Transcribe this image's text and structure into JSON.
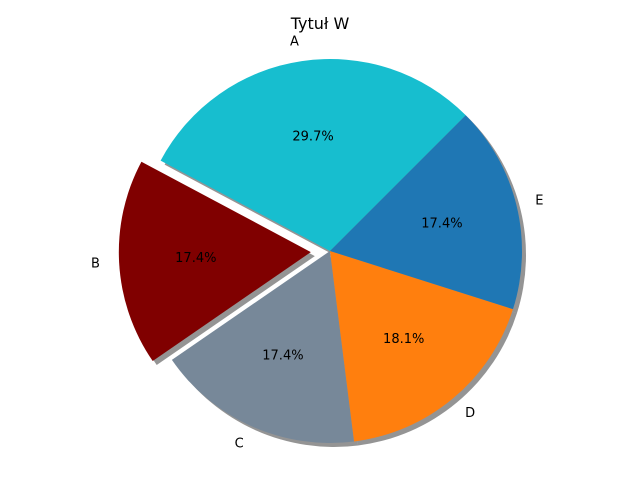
{
  "chart_data": {
    "type": "pie",
    "title": "Tytuł W",
    "categories": [
      "A",
      "B",
      "C",
      "D",
      "E"
    ],
    "values": [
      29.7,
      17.4,
      17.4,
      18.1,
      17.4
    ],
    "percent_labels": [
      "29.7%",
      "17.4%",
      "17.4%",
      "18.1%",
      "17.4%"
    ],
    "colors": [
      "#17becf",
      "#800000",
      "#778899",
      "#ff7f0e",
      "#1f77b4"
    ],
    "exploded": [
      false,
      true,
      false,
      false,
      false
    ],
    "shadow": true,
    "start_angle_deg": 45,
    "direction": "counterclockwise",
    "legend": "none"
  }
}
